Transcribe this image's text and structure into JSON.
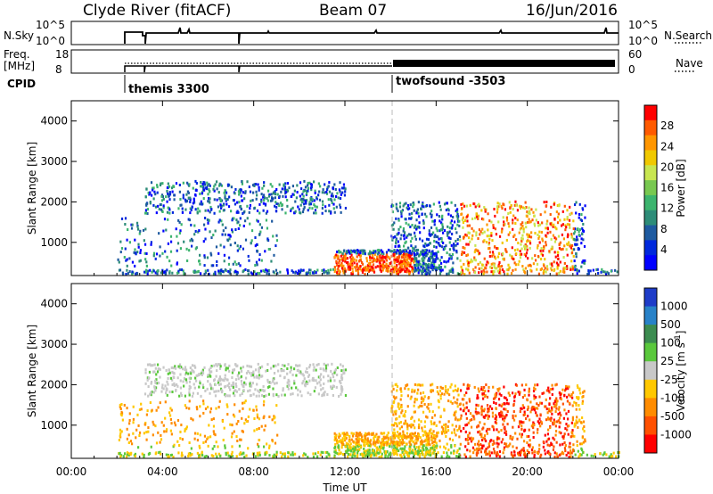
{
  "header": {
    "station": "Clyde River (fitACF)",
    "beam": "Beam 07",
    "date": "16/Jun/2016"
  },
  "summary_panels": {
    "nsky_label": "N.Sky",
    "nsky_ticks": [
      "10^5",
      "10^0"
    ],
    "nsearch_label": "N.Search",
    "nsearch_ticks": [
      "10^5",
      "10^0"
    ],
    "freq_label_line1": "Freq.",
    "freq_label_line2": "[MHz]",
    "freq_ticks": [
      "18",
      "8"
    ],
    "nave_label": "Nave",
    "nave_ticks": [
      "60",
      "0"
    ],
    "cpid_label": "CPID",
    "cpid_modes": [
      {
        "name": "themis 3300",
        "start_hour": 2.0
      },
      {
        "name": "twofsound -3503",
        "start_hour": 14.0
      }
    ]
  },
  "chart_data": [
    {
      "type": "heatmap",
      "title": "",
      "ylabel": "Slant Range [km]",
      "ylim": [
        180,
        4500
      ],
      "yticks": [
        "1000",
        "2000",
        "3000",
        "4000"
      ],
      "xlim": [
        0,
        24
      ],
      "colorbar_label": "Power [dB]",
      "colorbar_ticks": [
        "28",
        "24",
        "20",
        "16",
        "12",
        "8",
        "4"
      ],
      "colorbar_colors": [
        "#ff0000",
        "#ff5a00",
        "#ff9600",
        "#f0c800",
        "#c8e650",
        "#78c850",
        "#3cb46e",
        "#2d8c78",
        "#1e5aa0",
        "#0028dc",
        "#0000ff"
      ]
    },
    {
      "type": "heatmap",
      "title": "",
      "ylabel": "Slant Range [km]",
      "ylim": [
        180,
        4500
      ],
      "yticks": [
        "1000",
        "2000",
        "3000",
        "4000"
      ],
      "xlim": [
        0,
        24
      ],
      "xlabel": "Time UT",
      "xticks": [
        "00:00",
        "04:00",
        "08:00",
        "12:00",
        "16:00",
        "20:00",
        "00:00"
      ],
      "colorbar_label": "Velocity [m s^-1]",
      "colorbar_ticks": [
        "1000",
        "500",
        "100",
        "25",
        "-25",
        "-100",
        "-500",
        "-1000"
      ],
      "colorbar_colors": [
        "#1e3cc8",
        "#2882c8",
        "#3c8c50",
        "#5ac83c",
        "#c8c8c8",
        "#ffc800",
        "#ff8c00",
        "#ff5000",
        "#ff0000"
      ]
    }
  ]
}
